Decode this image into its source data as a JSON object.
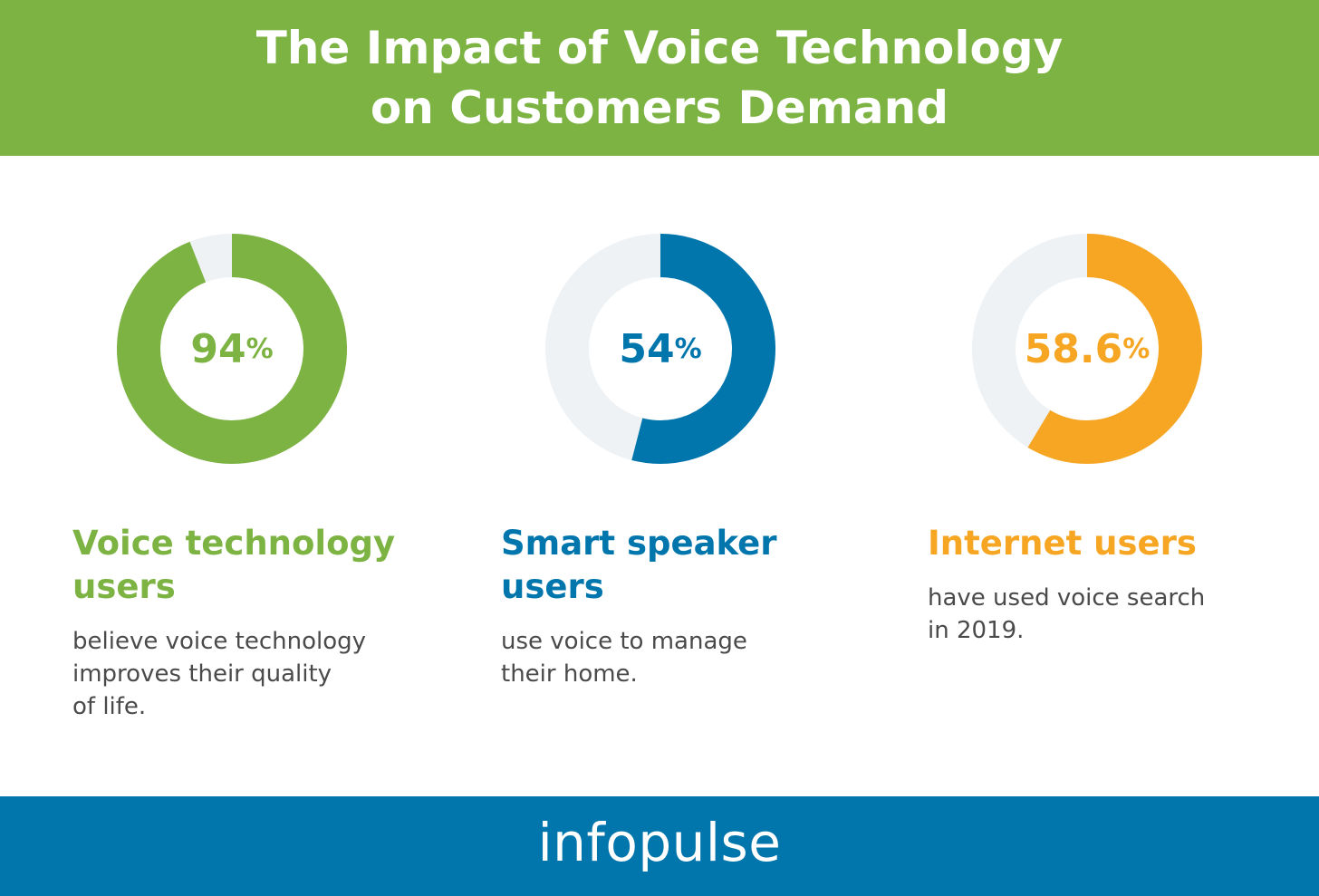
{
  "title": "The Impact of Voice Technology\non Customers Demand",
  "colors": {
    "header_bg": "#7cb342",
    "footer_bg": "#0176ad",
    "track": "#eef2f5"
  },
  "chart_data": {
    "type": "pie",
    "series": [
      {
        "value": 94,
        "value_label": "94",
        "unit": "%",
        "color": "#7cb342",
        "label_line1": "Voice technology",
        "label_line2": "users",
        "description_lines": [
          "believe voice technology",
          "improves their quality",
          "of life."
        ]
      },
      {
        "value": 54,
        "value_label": "54",
        "unit": "%",
        "color": "#0176ad",
        "label_line1": "Smart speaker",
        "label_line2": "users",
        "description_lines": [
          "use voice to manage",
          "their home."
        ]
      },
      {
        "value": 58.6,
        "value_label": "58.6",
        "unit": "%",
        "color": "#f6a623",
        "label_line1": "Internet users",
        "label_line2": "",
        "description_lines": [
          "have used voice search",
          "in 2019."
        ]
      }
    ]
  },
  "footer": {
    "logo_text": "infopulse"
  }
}
